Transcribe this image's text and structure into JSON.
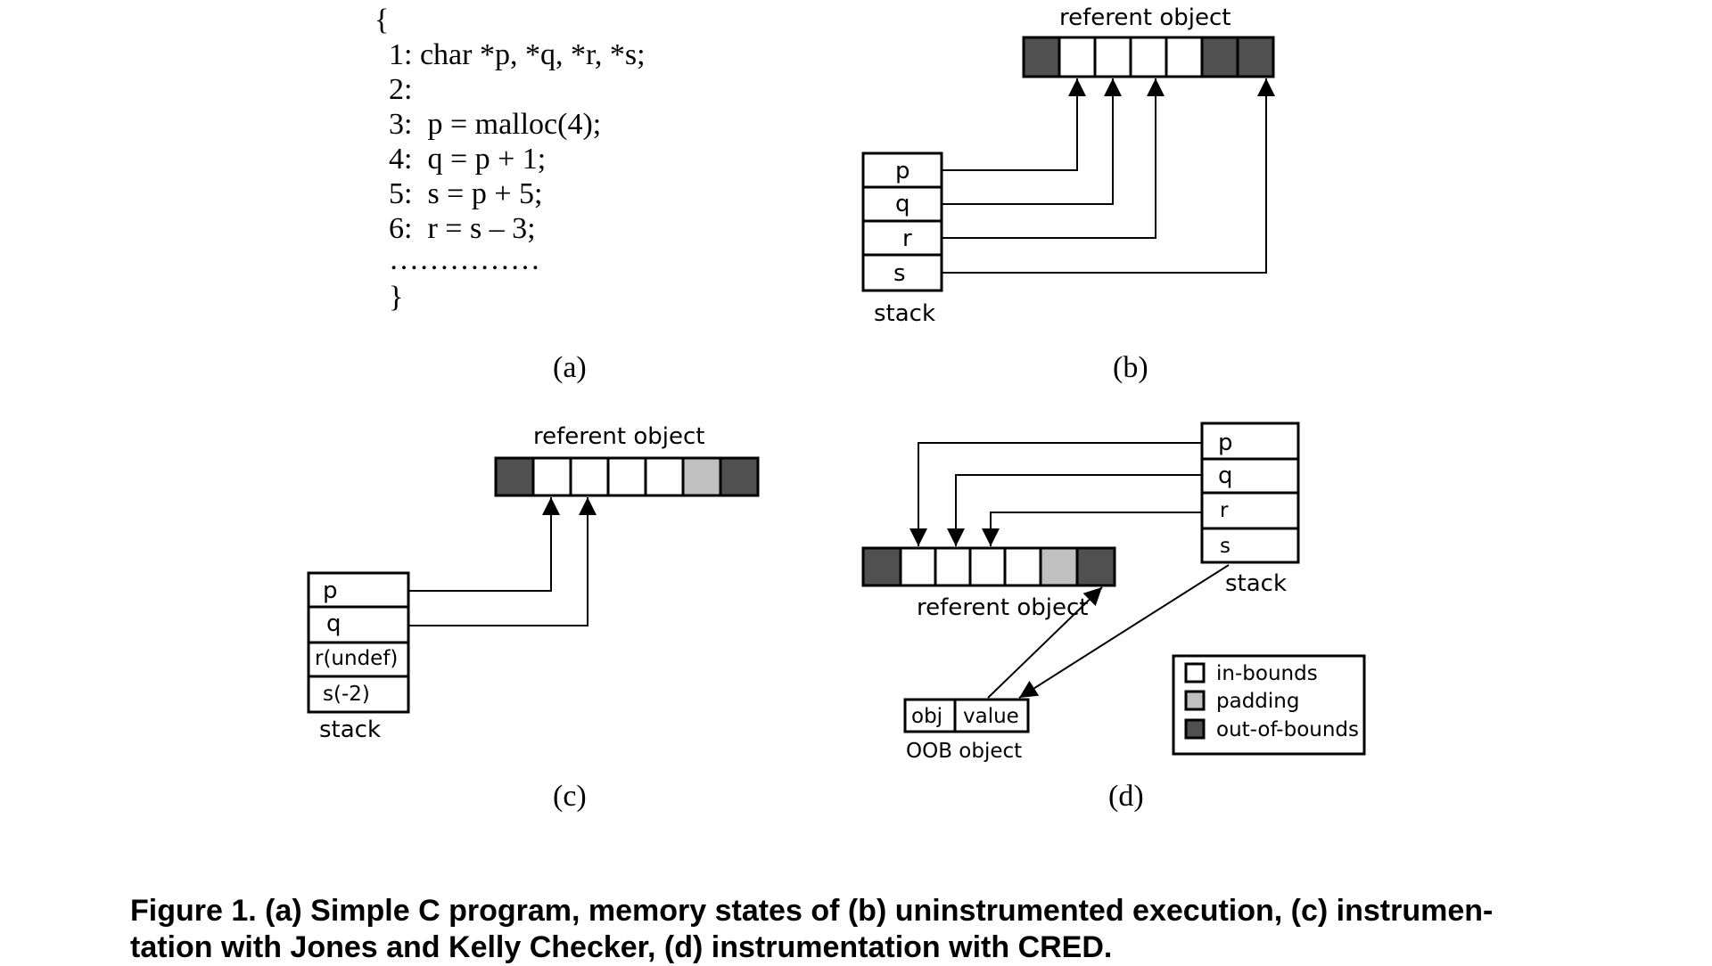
{
  "code": {
    "open_brace": "{",
    "lines": [
      "1: char *p, *q, *r, *s;",
      "2:",
      "3:  p = malloc(4);",
      "4:  q = p + 1;",
      "5:  s = p + 5;",
      "6:  r = s – 3;",
      "……………",
      "}"
    ]
  },
  "labels": {
    "a": "(a)",
    "b": "(b)",
    "c": "(c)",
    "d": "(d)"
  },
  "panel_b": {
    "referent_label": "referent object",
    "stack_label": "stack",
    "stack_cells": [
      "p",
      "q",
      "r",
      "s"
    ]
  },
  "panel_c": {
    "referent_label": "referent object",
    "stack_label": "stack",
    "stack_cells": [
      "p",
      "q",
      "r(undef)",
      "s(-2)"
    ]
  },
  "panel_d": {
    "referent_label": "referent object",
    "stack_label": "stack",
    "stack_cells": [
      "p",
      "q",
      "r",
      "s"
    ],
    "oob_cells": [
      "obj",
      "value"
    ],
    "oob_label": "OOB object",
    "legend": [
      "in-bounds",
      "padding",
      "out-of-bounds"
    ]
  },
  "colors": {
    "in_bounds": "#ffffff",
    "padding": "#c0c0c0",
    "out_of_bounds": "#505050"
  },
  "caption": {
    "line1": "Figure 1. (a) Simple C program, memory states of (b) uninstrumented execution, (c) instrumen-",
    "line2": "tation with Jones and Kelly Checker, (d) instrumentation with CRED."
  }
}
